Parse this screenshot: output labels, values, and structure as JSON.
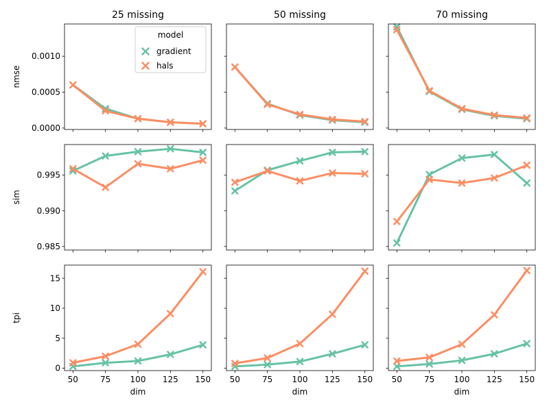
{
  "chart_data": {
    "type": "line",
    "x": [
      50,
      75,
      100,
      125,
      150
    ],
    "xlabel": "dim",
    "xticks": [
      "50",
      "75",
      "100",
      "125",
      "150"
    ],
    "legend": {
      "title": "model",
      "entries": [
        "gradient",
        "hals"
      ],
      "placement": "top-right of first panel"
    },
    "colors": {
      "gradient": "#66c2a5",
      "hals": "#fc8d62"
    },
    "columns": [
      "25 missing",
      "50 missing",
      "70 missing"
    ],
    "rows": [
      {
        "metric": "nmse",
        "ylabel": "nmse",
        "ylim": [
          -2e-05,
          0.00145
        ],
        "yticks": [
          0,
          0.0005,
          0.001
        ],
        "ytick_labels": [
          "0.0000",
          "0.0005",
          "0.0010"
        ],
        "panels": [
          {
            "gradient": [
              0.0006,
              0.00027,
              0.00013,
              8e-05,
              6e-05
            ],
            "hals": [
              0.0006,
              0.00024,
              0.00013,
              8e-05,
              6e-05
            ]
          },
          {
            "gradient": [
              0.00085,
              0.00034,
              0.00018,
              0.00011,
              8e-05
            ],
            "hals": [
              0.00085,
              0.00033,
              0.00019,
              0.00012,
              9e-05
            ]
          },
          {
            "gradient": [
              0.00141,
              0.00051,
              0.00026,
              0.00017,
              0.00013
            ],
            "hals": [
              0.00137,
              0.00052,
              0.00027,
              0.00018,
              0.00014
            ]
          }
        ]
      },
      {
        "metric": "sim",
        "ylabel": "sim",
        "ylim": [
          0.9845,
          0.9993
        ],
        "yticks": [
          0.985,
          0.99,
          0.995
        ],
        "ytick_labels": [
          "0.985",
          "0.990",
          "0.995"
        ],
        "panels": [
          {
            "gradient": [
              0.9956,
              0.9977,
              0.9983,
              0.9987,
              0.9982
            ],
            "hals": [
              0.9959,
              0.9933,
              0.9966,
              0.9959,
              0.9971
            ]
          },
          {
            "gradient": [
              0.9928,
              0.9957,
              0.997,
              0.9982,
              0.9983
            ],
            "hals": [
              0.994,
              0.9956,
              0.9942,
              0.9953,
              0.9952
            ]
          },
          {
            "gradient": [
              0.9855,
              0.9951,
              0.9974,
              0.9979,
              0.9939
            ],
            "hals": [
              0.9885,
              0.9944,
              0.9939,
              0.9946,
              0.9964
            ]
          }
        ]
      },
      {
        "metric": "tpi",
        "ylabel": "tpi",
        "ylim": [
          -0.4,
          17.2
        ],
        "yticks": [
          0,
          5,
          10,
          15
        ],
        "ytick_labels": [
          "0",
          "5",
          "10",
          "15"
        ],
        "panels": [
          {
            "gradient": [
              0.3,
              0.9,
              1.2,
              2.3,
              3.9
            ],
            "hals": [
              0.9,
              2.0,
              4.0,
              9.1,
              16.1
            ]
          },
          {
            "gradient": [
              0.3,
              0.6,
              1.1,
              2.4,
              3.9
            ],
            "hals": [
              0.8,
              1.7,
              4.1,
              9.0,
              16.2
            ]
          },
          {
            "gradient": [
              0.3,
              0.7,
              1.3,
              2.4,
              4.1
            ],
            "hals": [
              1.2,
              1.8,
              4.0,
              8.9,
              16.3
            ]
          }
        ]
      }
    ]
  }
}
